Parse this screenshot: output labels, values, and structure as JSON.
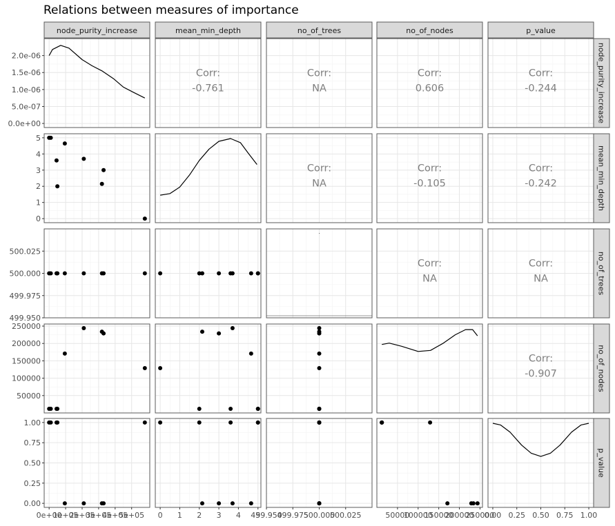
{
  "chart_data": {
    "type": "scatter-matrix",
    "title": "Relations between measures of importance",
    "variables": [
      "node_purity_increase",
      "mean_min_depth",
      "no_of_trees",
      "no_of_nodes",
      "p_value"
    ],
    "observations": {
      "node_purity_increase": [
        0,
        45000,
        50000,
        95000,
        210000,
        320000,
        330000,
        580000,
        10000
      ],
      "mean_min_depth": [
        5.0,
        3.6,
        2.0,
        4.65,
        3.7,
        2.15,
        3.0,
        0.0,
        5.0
      ],
      "no_of_trees": [
        500,
        500,
        500,
        500,
        500,
        500,
        500,
        500,
        500
      ],
      "no_of_nodes": [
        12000,
        12000,
        12000,
        171000,
        244000,
        234000,
        229000,
        129000,
        12000
      ],
      "p_value": [
        1.0,
        1.0,
        1.0,
        0.0,
        0.0,
        0.0,
        0.0,
        1.0,
        1.0
      ]
    },
    "correlations": {
      "node_purity_increase|mean_min_depth": "-0.761",
      "node_purity_increase|no_of_trees": "NA",
      "node_purity_increase|no_of_nodes": "0.606",
      "node_purity_increase|p_value": "-0.244",
      "mean_min_depth|no_of_trees": "NA",
      "mean_min_depth|no_of_nodes": "-0.105",
      "mean_min_depth|p_value": "-0.242",
      "no_of_trees|no_of_nodes": "NA",
      "no_of_trees|p_value": "NA",
      "no_of_nodes|p_value": "-0.907"
    },
    "corr_label": "Corr:",
    "densities": {
      "node_purity_increase": [
        [
          0,
          2e-06
        ],
        [
          20000,
          2.18e-06
        ],
        [
          70000,
          2.3e-06
        ],
        [
          120000,
          2.22e-06
        ],
        [
          200000,
          1.88e-06
        ],
        [
          260000,
          1.7e-06
        ],
        [
          320000,
          1.55e-06
        ],
        [
          390000,
          1.32e-06
        ],
        [
          450000,
          1.07e-06
        ],
        [
          510000,
          9.2e-07
        ],
        [
          580000,
          7.5e-07
        ]
      ],
      "mean_min_depth": [
        [
          0,
          1.45
        ],
        [
          0.5,
          1.55
        ],
        [
          1.0,
          1.95
        ],
        [
          1.5,
          2.7
        ],
        [
          2.0,
          3.6
        ],
        [
          2.5,
          4.3
        ],
        [
          3.0,
          4.78
        ],
        [
          3.6,
          4.95
        ],
        [
          4.1,
          4.7
        ],
        [
          4.5,
          4.05
        ],
        [
          4.95,
          3.35
        ]
      ],
      "no_of_trees": [
        [
          500,
          500.045
        ]
      ],
      "no_of_nodes": [
        [
          12000,
          197000
        ],
        [
          30000,
          201000
        ],
        [
          60000,
          192000
        ],
        [
          100000,
          177000
        ],
        [
          130000,
          180000
        ],
        [
          160000,
          200000
        ],
        [
          190000,
          225000
        ],
        [
          215000,
          240000
        ],
        [
          232000,
          240000
        ],
        [
          244000,
          222000
        ]
      ],
      "p_value": [
        [
          0.0,
          0.99
        ],
        [
          0.08,
          0.97
        ],
        [
          0.18,
          0.88
        ],
        [
          0.3,
          0.72
        ],
        [
          0.4,
          0.62
        ],
        [
          0.5,
          0.58
        ],
        [
          0.6,
          0.62
        ],
        [
          0.7,
          0.72
        ],
        [
          0.82,
          0.88
        ],
        [
          0.92,
          0.97
        ],
        [
          1.0,
          0.99
        ]
      ]
    },
    "axes": {
      "node_purity_increase": {
        "x_range": [
          -30000,
          610000
        ],
        "x_ticks": [
          [
            0,
            "0e+00"
          ],
          [
            100000,
            "1e+05"
          ],
          [
            200000,
            "2e+05"
          ],
          [
            300000,
            "3e+05"
          ],
          [
            400000,
            "4e+05"
          ],
          [
            500000,
            "5e+05"
          ]
        ],
        "y_range": [
          -1.2e-07,
          2.5e-06
        ],
        "y_ticks": [
          [
            0,
            "0.0e+00"
          ],
          [
            5e-07,
            "5.0e-07"
          ],
          [
            1e-06,
            "1.0e-06"
          ],
          [
            1.5e-06,
            "1.5e-06"
          ],
          [
            2e-06,
            "2.0e-06"
          ]
        ]
      },
      "mean_min_depth": {
        "x_range": [
          -0.25,
          5.15
        ],
        "x_ticks": [
          [
            0,
            "0"
          ],
          [
            1,
            "1"
          ],
          [
            2,
            "2"
          ],
          [
            3,
            "3"
          ],
          [
            4,
            "4"
          ],
          [
            5,
            "5"
          ]
        ],
        "y_range": [
          -0.25,
          5.25
        ],
        "y_ticks": [
          [
            0,
            "0"
          ],
          [
            1,
            "1"
          ],
          [
            2,
            "2"
          ],
          [
            3,
            "3"
          ],
          [
            4,
            "4"
          ],
          [
            5,
            "5"
          ]
        ]
      },
      "no_of_trees": {
        "x_range": [
          499.95,
          500.05
        ],
        "x_ticks": [
          [
            499.95,
            "499.950"
          ],
          [
            499.975,
            "499.975"
          ],
          [
            500.0,
            "500.000"
          ],
          [
            500.025,
            "500.025"
          ]
        ],
        "y_range": [
          499.95,
          500.05
        ],
        "y_ticks": [
          [
            499.95,
            "499.950"
          ],
          [
            499.975,
            "499.975"
          ],
          [
            500.0,
            "500.000"
          ],
          [
            500.025,
            "500.025"
          ]
        ]
      },
      "no_of_nodes": {
        "x_range": [
          0,
          256000
        ],
        "x_ticks": [
          [
            50000,
            "50000"
          ],
          [
            100000,
            "100000"
          ],
          [
            150000,
            "150000"
          ],
          [
            200000,
            "200000"
          ],
          [
            250000,
            "250000"
          ]
        ],
        "y_range": [
          0,
          256000
        ],
        "y_ticks": [
          [
            50000,
            "50000"
          ],
          [
            100000,
            "100000"
          ],
          [
            150000,
            "150000"
          ],
          [
            200000,
            "200000"
          ],
          [
            250000,
            "250000"
          ]
        ]
      },
      "p_value": {
        "x_range": [
          -0.05,
          1.05
        ],
        "x_ticks": [
          [
            0,
            "0.00"
          ],
          [
            0.25,
            "0.25"
          ],
          [
            0.5,
            "0.50"
          ],
          [
            0.75,
            "0.75"
          ],
          [
            1.0,
            "1.00"
          ]
        ],
        "y_range": [
          -0.05,
          1.05
        ],
        "y_ticks": [
          [
            0,
            "0.00"
          ],
          [
            0.25,
            "0.25"
          ],
          [
            0.5,
            "0.50"
          ],
          [
            0.75,
            "0.75"
          ],
          [
            1.0,
            "1.00"
          ]
        ]
      }
    },
    "grid": true,
    "colors": {
      "panel_border": "#5a5a5a",
      "grid_major": "#e6e6e6",
      "grid_minor": "#f3f3f3",
      "strip_fill": "#d9d9d9",
      "strip_border": "#5a5a5a",
      "points": "#000000",
      "corr_text": "#7f7f7f",
      "tick_text": "#4d4d4d"
    }
  }
}
